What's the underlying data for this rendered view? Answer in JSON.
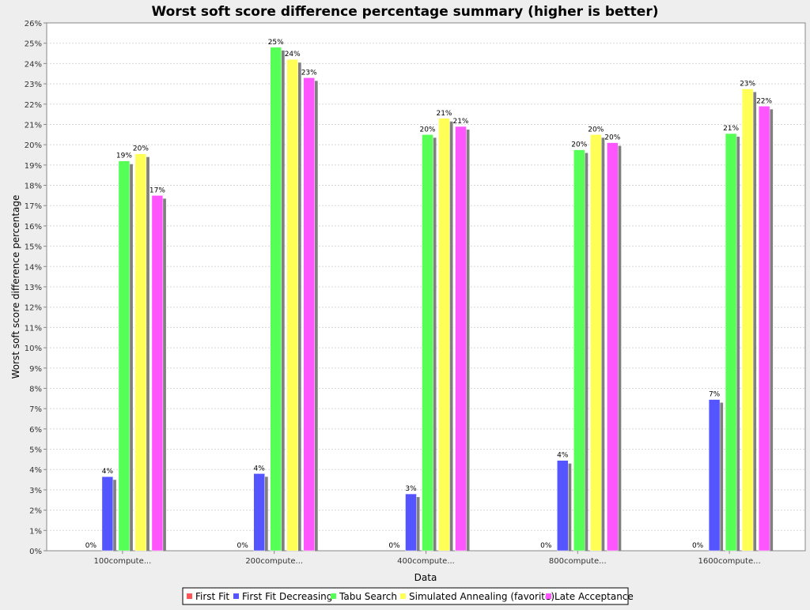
{
  "chart_data": {
    "type": "bar",
    "title": "Worst soft score difference percentage summary (higher is better)",
    "xlabel": "Data",
    "ylabel": "Worst soft score difference percentage",
    "ylim": [
      0,
      26
    ],
    "y_tick_step": 1,
    "y_tick_suffix": "%",
    "grid": true,
    "legend_position": "bottom",
    "categories": [
      "100compute...",
      "200compute...",
      "400compute...",
      "800compute...",
      "1600compute..."
    ],
    "series": [
      {
        "name": "First Fit",
        "color": "#ff5555",
        "values": [
          0,
          0,
          0,
          0,
          0
        ],
        "labels": [
          "0%",
          "0%",
          "0%",
          "0%",
          "0%"
        ]
      },
      {
        "name": "First Fit Decreasing",
        "color": "#5555ff",
        "values": [
          3.65,
          3.8,
          2.8,
          4.45,
          7.45
        ],
        "labels": [
          "4%",
          "4%",
          "3%",
          "4%",
          "7%"
        ]
      },
      {
        "name": "Tabu Search",
        "color": "#55ff55",
        "values": [
          19.2,
          24.8,
          20.5,
          19.75,
          20.55
        ],
        "labels": [
          "19%",
          "25%",
          "20%",
          "20%",
          "21%"
        ]
      },
      {
        "name": "Simulated Annealing (favorite)",
        "color": "#ffff55",
        "values": [
          19.55,
          24.2,
          21.3,
          20.5,
          22.75
        ],
        "labels": [
          "20%",
          "24%",
          "21%",
          "20%",
          "23%"
        ]
      },
      {
        "name": "Late Acceptance",
        "color": "#ff55ff",
        "values": [
          17.5,
          23.3,
          20.9,
          20.1,
          21.9
        ],
        "labels": [
          "17%",
          "23%",
          "21%",
          "20%",
          "22%"
        ]
      }
    ]
  }
}
